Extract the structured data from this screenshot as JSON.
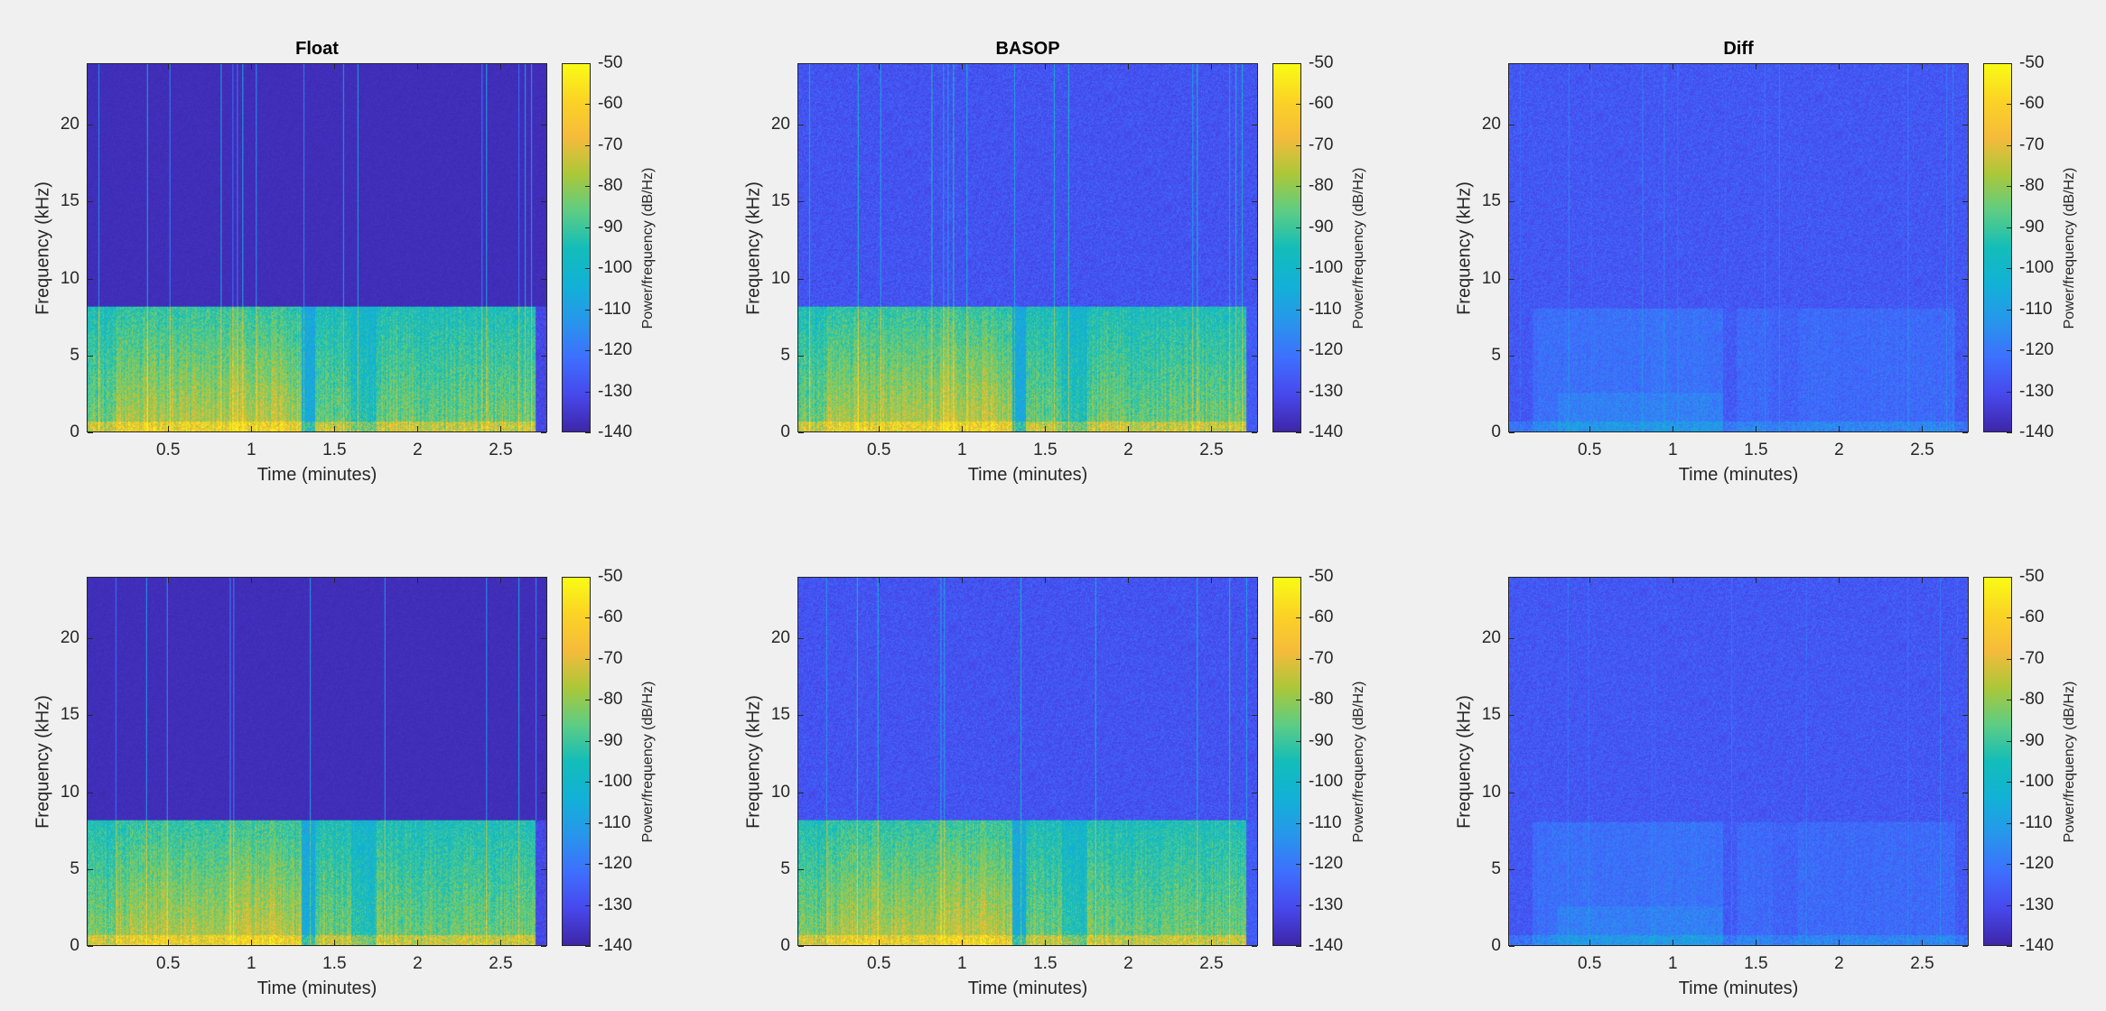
{
  "colormap": [
    "#3e26a8",
    "#4748ec",
    "#3e6ffe",
    "#2796eb",
    "#12b1d6",
    "#13bdb9",
    "#5dcd84",
    "#abc739",
    "#f5bb3b",
    "#fbd325",
    "#f9fb14"
  ],
  "chart_data": [
    {
      "type": "heatmap",
      "title": "Float",
      "xlabel": "Time (minutes)",
      "ylabel": "Frequency (kHz)",
      "colorbar_label": "Power/frequency (dB/Hz)",
      "xlim": [
        0.01,
        2.78
      ],
      "ylim": [
        0,
        24
      ],
      "clim": [
        -140,
        -50
      ],
      "x_ticks": [
        "0.5",
        "1",
        "1.5",
        "2",
        "2.5"
      ],
      "y_ticks": [
        "0",
        "5",
        "10",
        "15",
        "20"
      ],
      "colorbar_ticks": [
        "-50",
        "-60",
        "-70",
        "-80",
        "-90",
        "-100",
        "-110",
        "-120",
        "-130",
        "-140"
      ]
    },
    {
      "type": "heatmap",
      "title": "BASOP",
      "xlabel": "Time (minutes)",
      "ylabel": "Frequency (kHz)",
      "colorbar_label": "Power/frequency (dB/Hz)",
      "xlim": [
        0.01,
        2.78
      ],
      "ylim": [
        0,
        24
      ],
      "clim": [
        -140,
        -50
      ],
      "x_ticks": [
        "0.5",
        "1",
        "1.5",
        "2",
        "2.5"
      ],
      "y_ticks": [
        "0",
        "5",
        "10",
        "15",
        "20"
      ],
      "colorbar_ticks": [
        "-50",
        "-60",
        "-70",
        "-80",
        "-90",
        "-100",
        "-110",
        "-120",
        "-130",
        "-140"
      ]
    },
    {
      "type": "heatmap",
      "title": "Diff",
      "xlabel": "Time (minutes)",
      "ylabel": "Frequency (kHz)",
      "colorbar_label": "Power/frequency (dB/Hz)",
      "xlim": [
        0.01,
        2.78
      ],
      "ylim": [
        0,
        24
      ],
      "clim": [
        -140,
        -50
      ],
      "x_ticks": [
        "0.5",
        "1",
        "1.5",
        "2",
        "2.5"
      ],
      "y_ticks": [
        "0",
        "5",
        "10",
        "15",
        "20"
      ],
      "colorbar_ticks": [
        "-50",
        "-60",
        "-70",
        "-80",
        "-90",
        "-100",
        "-110",
        "-120",
        "-130",
        "-140"
      ]
    },
    {
      "type": "heatmap",
      "title": "",
      "xlabel": "Time (minutes)",
      "ylabel": "Frequency (kHz)",
      "colorbar_label": "Power/frequency (dB/Hz)",
      "xlim": [
        0.01,
        2.78
      ],
      "ylim": [
        0,
        24
      ],
      "clim": [
        -140,
        -50
      ],
      "x_ticks": [
        "0.5",
        "1",
        "1.5",
        "2",
        "2.5"
      ],
      "y_ticks": [
        "0",
        "5",
        "10",
        "15",
        "20"
      ],
      "colorbar_ticks": [
        "-50",
        "-60",
        "-70",
        "-80",
        "-90",
        "-100",
        "-110",
        "-120",
        "-130",
        "-140"
      ]
    },
    {
      "type": "heatmap",
      "title": "",
      "xlabel": "Time (minutes)",
      "ylabel": "Frequency (kHz)",
      "colorbar_label": "Power/frequency (dB/Hz)",
      "xlim": [
        0.01,
        2.78
      ],
      "ylim": [
        0,
        24
      ],
      "clim": [
        -140,
        -50
      ],
      "x_ticks": [
        "0.5",
        "1",
        "1.5",
        "2",
        "2.5"
      ],
      "y_ticks": [
        "0",
        "5",
        "10",
        "15",
        "20"
      ],
      "colorbar_ticks": [
        "-50",
        "-60",
        "-70",
        "-80",
        "-90",
        "-100",
        "-110",
        "-120",
        "-130",
        "-140"
      ]
    },
    {
      "type": "heatmap",
      "title": "",
      "xlabel": "Time (minutes)",
      "ylabel": "Frequency (kHz)",
      "colorbar_label": "Power/frequency (dB/Hz)",
      "xlim": [
        0.01,
        2.78
      ],
      "ylim": [
        0,
        24
      ],
      "clim": [
        -140,
        -50
      ],
      "x_ticks": [
        "0.5",
        "1",
        "1.5",
        "2",
        "2.5"
      ],
      "y_ticks": [
        "0",
        "5",
        "10",
        "15",
        "20"
      ],
      "colorbar_ticks": [
        "-50",
        "-60",
        "-70",
        "-80",
        "-90",
        "-100",
        "-110",
        "-120",
        "-130",
        "-140"
      ]
    }
  ]
}
